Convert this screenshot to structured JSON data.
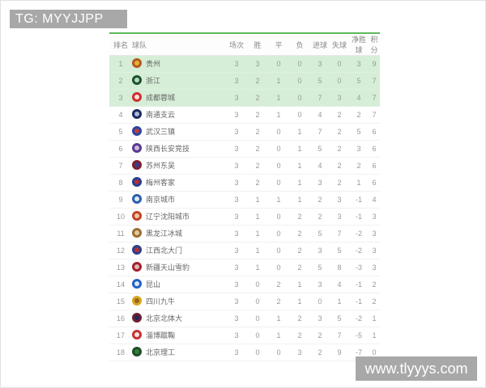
{
  "watermarks": {
    "top_left": "TG: MYYJJPP",
    "bottom_right": "www.tlyyys.com",
    "bg_color": "#a8a8a8",
    "text_color": "#ffffff"
  },
  "colors": {
    "accent_green": "#5cb85c",
    "highlight_row_bg": "#d6eed7",
    "header_text": "#888888",
    "cell_text": "#999999",
    "team_text": "#666666"
  },
  "table": {
    "columns": [
      "排名",
      "球队",
      "场次",
      "胜",
      "平",
      "负",
      "进球",
      "失球",
      "净胜球",
      "积分"
    ],
    "highlight_top_n": 3,
    "rows": [
      {
        "rank": 1,
        "team": "贵州",
        "logo_color": "#b55a1e",
        "logo_accent": "#f0c045",
        "played": 3,
        "won": 3,
        "drawn": 0,
        "lost": 0,
        "goals_for": 3,
        "goals_against": 0,
        "goal_diff": 3,
        "points": 9
      },
      {
        "rank": 2,
        "team": "浙江",
        "logo_color": "#17532c",
        "logo_accent": "#dcebdc",
        "played": 3,
        "won": 2,
        "drawn": 1,
        "lost": 0,
        "goals_for": 5,
        "goals_against": 0,
        "goal_diff": 5,
        "points": 7
      },
      {
        "rank": 3,
        "team": "成都蓉城",
        "logo_color": "#cf2e2e",
        "logo_accent": "#ffffff",
        "played": 3,
        "won": 2,
        "drawn": 1,
        "lost": 0,
        "goals_for": 7,
        "goals_against": 3,
        "goal_diff": 4,
        "points": 7
      },
      {
        "rank": 4,
        "team": "南通支云",
        "logo_color": "#1a2a5e",
        "logo_accent": "#c9d4ea",
        "played": 3,
        "won": 2,
        "drawn": 1,
        "lost": 0,
        "goals_for": 4,
        "goals_against": 2,
        "goal_diff": 2,
        "points": 7
      },
      {
        "rank": 5,
        "team": "武汉三镇",
        "logo_color": "#2a469c",
        "logo_accent": "#d23c3c",
        "played": 3,
        "won": 2,
        "drawn": 0,
        "lost": 1,
        "goals_for": 7,
        "goals_against": 2,
        "goal_diff": 5,
        "points": 6
      },
      {
        "rank": 6,
        "team": "陕西长安竞技",
        "logo_color": "#5b3a8c",
        "logo_accent": "#ded1f0",
        "played": 3,
        "won": 2,
        "drawn": 0,
        "lost": 1,
        "goals_for": 5,
        "goals_against": 2,
        "goal_diff": 3,
        "points": 6
      },
      {
        "rank": 7,
        "team": "苏州东吴",
        "logo_color": "#7d2030",
        "logo_accent": "#2a469c",
        "played": 3,
        "won": 2,
        "drawn": 0,
        "lost": 1,
        "goals_for": 4,
        "goals_against": 2,
        "goal_diff": 2,
        "points": 6
      },
      {
        "rank": 8,
        "team": "梅州客家",
        "logo_color": "#25408f",
        "logo_accent": "#cf2e2e",
        "played": 3,
        "won": 2,
        "drawn": 0,
        "lost": 1,
        "goals_for": 3,
        "goals_against": 2,
        "goal_diff": 1,
        "points": 6
      },
      {
        "rank": 9,
        "team": "南京城市",
        "logo_color": "#2b60b0",
        "logo_accent": "#ffffff",
        "played": 3,
        "won": 1,
        "drawn": 1,
        "lost": 1,
        "goals_for": 2,
        "goals_against": 3,
        "goal_diff": -1,
        "points": 4
      },
      {
        "rank": 10,
        "team": "辽宁沈阳城市",
        "logo_color": "#c24226",
        "logo_accent": "#f2e2c2",
        "played": 3,
        "won": 1,
        "drawn": 0,
        "lost": 2,
        "goals_for": 2,
        "goals_against": 3,
        "goal_diff": -1,
        "points": 3
      },
      {
        "rank": 11,
        "team": "黑龙江冰城",
        "logo_color": "#9d6c30",
        "logo_accent": "#ecdcb4",
        "played": 3,
        "won": 1,
        "drawn": 0,
        "lost": 2,
        "goals_for": 5,
        "goals_against": 7,
        "goal_diff": -2,
        "points": 3
      },
      {
        "rank": 12,
        "team": "江西北大门",
        "logo_color": "#2c3f8d",
        "logo_accent": "#cf2e2e",
        "played": 3,
        "won": 1,
        "drawn": 0,
        "lost": 2,
        "goals_for": 3,
        "goals_against": 5,
        "goal_diff": -2,
        "points": 3
      },
      {
        "rank": 13,
        "team": "新疆天山雪豹",
        "logo_color": "#a2222a",
        "logo_accent": "#f0cfcf",
        "played": 3,
        "won": 1,
        "drawn": 0,
        "lost": 2,
        "goals_for": 5,
        "goals_against": 8,
        "goal_diff": -3,
        "points": 3
      },
      {
        "rank": 14,
        "team": "昆山",
        "logo_color": "#1f63c4",
        "logo_accent": "#ffffff",
        "played": 3,
        "won": 0,
        "drawn": 2,
        "lost": 1,
        "goals_for": 3,
        "goals_against": 4,
        "goal_diff": -1,
        "points": 2
      },
      {
        "rank": 15,
        "team": "四川九牛",
        "logo_color": "#d9a520",
        "logo_accent": "#8a5a1a",
        "played": 3,
        "won": 0,
        "drawn": 2,
        "lost": 1,
        "goals_for": 0,
        "goals_against": 1,
        "goal_diff": -1,
        "points": 2
      },
      {
        "rank": 16,
        "team": "北京北体大",
        "logo_color": "#6e2030",
        "logo_accent": "#1a2a5e",
        "played": 3,
        "won": 0,
        "drawn": 1,
        "lost": 2,
        "goals_for": 3,
        "goals_against": 5,
        "goal_diff": -2,
        "points": 1
      },
      {
        "rank": 17,
        "team": "淄博蹴鞠",
        "logo_color": "#c43232",
        "logo_accent": "#ffffff",
        "played": 3,
        "won": 0,
        "drawn": 1,
        "lost": 2,
        "goals_for": 2,
        "goals_against": 7,
        "goal_diff": -5,
        "points": 1
      },
      {
        "rank": 18,
        "team": "北京理工",
        "logo_color": "#1e4d28",
        "logo_accent": "#3a8a3a",
        "played": 3,
        "won": 0,
        "drawn": 0,
        "lost": 3,
        "goals_for": 2,
        "goals_against": 9,
        "goal_diff": -7,
        "points": 0
      }
    ]
  }
}
